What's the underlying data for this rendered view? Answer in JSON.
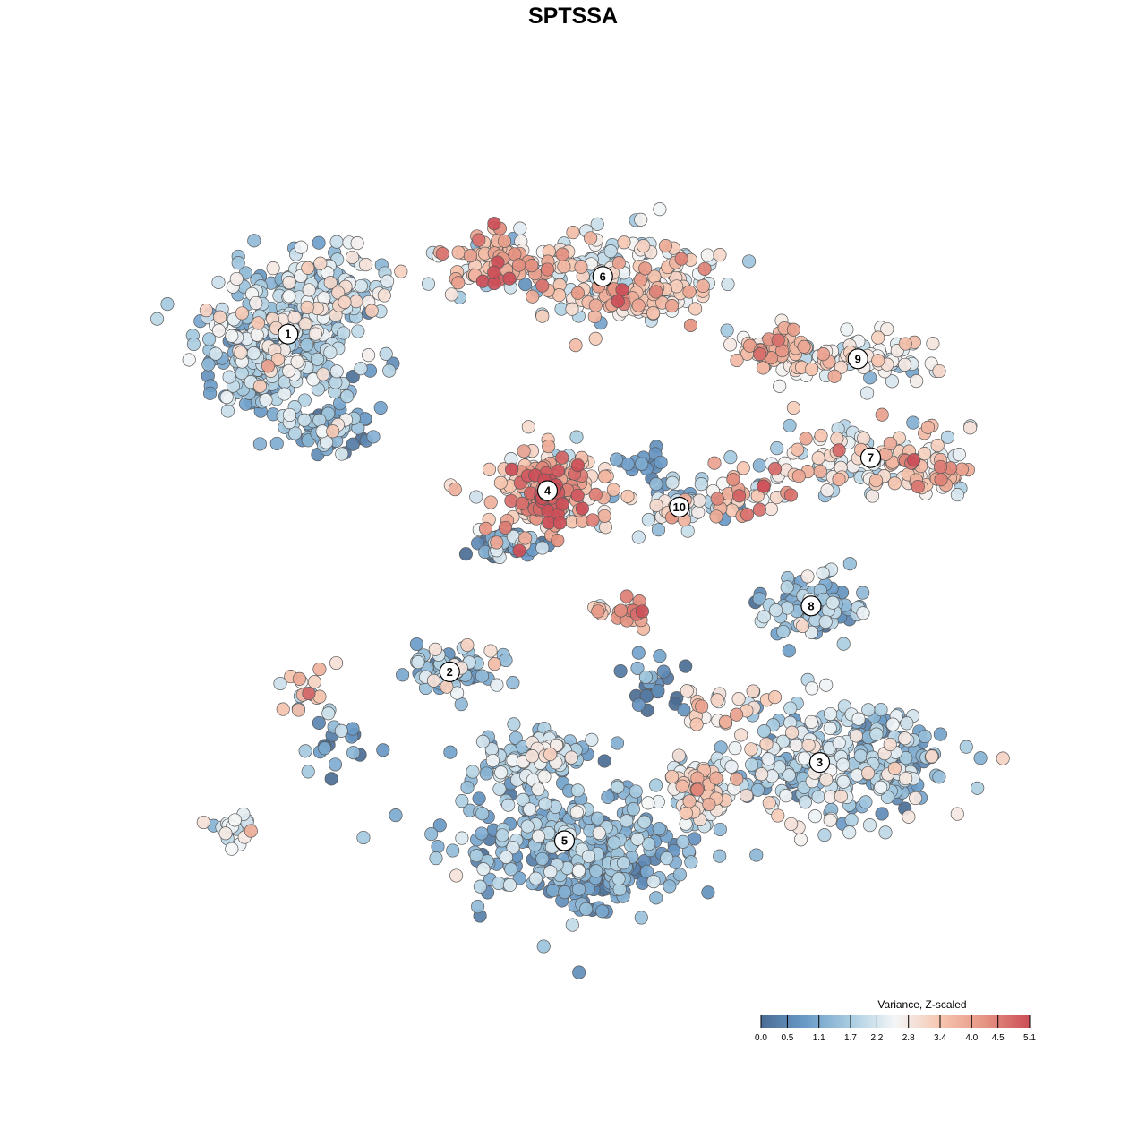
{
  "title": "SPTSSA",
  "colors": {
    "scale": [
      "#4a6c94",
      "#6a9bc8",
      "#a9cde1",
      "#f4f6f7",
      "#f6c6b0",
      "#e59482",
      "#cc4e58"
    ],
    "point_stroke": "#5a5a5a"
  },
  "chart_data": {
    "type": "scatter",
    "title": "SPTSSA",
    "xlabel": "",
    "ylabel": "",
    "grid": false,
    "legend_position": "bottom-right",
    "color_variable": "Variance, Z-scaled",
    "color_range": [
      0.0,
      5.1
    ],
    "legend": {
      "title": "Variance, Z-scaled",
      "ticks": [
        "0.0",
        "0.5",
        "1.1",
        "1.7",
        "2.2",
        "2.8",
        "3.4",
        "4.0",
        "4.5",
        "5.1"
      ]
    },
    "clusters": [
      {
        "label": "1",
        "x": -0.67,
        "y": 0.58,
        "rx": 0.16,
        "ry": 0.16,
        "mean": 1.8,
        "spread": 0.7,
        "n": 520,
        "blobs": [
          [
            -0.75,
            0.52,
            0.1,
            0.14,
            1.3
          ],
          [
            -0.55,
            0.7,
            0.12,
            0.08,
            2.0
          ],
          [
            -0.58,
            0.35,
            0.09,
            0.05,
            0.9
          ]
        ]
      },
      {
        "label": "2",
        "x": -0.29,
        "y": -0.24,
        "rx": 0.11,
        "ry": 0.05,
        "mean": 1.3,
        "spread": 0.9,
        "n": 120,
        "blobs": [
          [
            -0.55,
            -0.41,
            0.09,
            0.07,
            0.4
          ],
          [
            -0.62,
            -0.27,
            0.08,
            0.05,
            2.8
          ],
          [
            -0.8,
            -0.62,
            0.06,
            0.04,
            2.2
          ]
        ]
      },
      {
        "label": "3",
        "x": 0.58,
        "y": -0.46,
        "rx": 0.25,
        "ry": 0.14,
        "mean": 1.8,
        "spread": 0.7,
        "n": 430,
        "blobs": [
          [
            0.74,
            -0.46,
            0.11,
            0.11,
            1.1
          ],
          [
            0.3,
            -0.52,
            0.07,
            0.07,
            2.6
          ]
        ]
      },
      {
        "label": "4",
        "x": -0.06,
        "y": 0.2,
        "rx": 0.15,
        "ry": 0.11,
        "mean": 3.5,
        "spread": 0.8,
        "n": 260,
        "blobs": [
          [
            -0.06,
            0.19,
            0.07,
            0.06,
            4.4
          ],
          [
            -0.14,
            0.07,
            0.08,
            0.03,
            0.6
          ]
        ]
      },
      {
        "label": "5",
        "x": -0.02,
        "y": -0.65,
        "rx": 0.26,
        "ry": 0.15,
        "mean": 1.2,
        "spread": 0.6,
        "n": 460,
        "blobs": [
          [
            0.05,
            -0.72,
            0.18,
            0.08,
            1.0
          ],
          [
            -0.1,
            -0.45,
            0.12,
            0.06,
            1.8
          ]
        ]
      },
      {
        "label": "6",
        "x": 0.07,
        "y": 0.72,
        "rx": 0.25,
        "ry": 0.11,
        "mean": 2.6,
        "spread": 0.8,
        "n": 330,
        "blobs": [
          [
            -0.17,
            0.75,
            0.1,
            0.07,
            3.7
          ],
          [
            0.16,
            0.68,
            0.11,
            0.05,
            3.2
          ]
        ]
      },
      {
        "label": "7",
        "x": 0.7,
        "y": 0.28,
        "rx": 0.26,
        "ry": 0.08,
        "mean": 2.7,
        "spread": 0.7,
        "n": 220,
        "blobs": [
          [
            0.84,
            0.25,
            0.09,
            0.04,
            3.4
          ],
          [
            0.27,
            0.17,
            0.1,
            0.06,
            1.2
          ],
          [
            0.4,
            0.19,
            0.08,
            0.06,
            3.8
          ]
        ]
      },
      {
        "label": "8",
        "x": 0.56,
        "y": -0.08,
        "rx": 0.11,
        "ry": 0.07,
        "mean": 1.4,
        "spread": 0.6,
        "n": 150,
        "blobs": [
          [
            0.12,
            -0.1,
            0.06,
            0.04,
            4.0
          ],
          [
            0.35,
            -0.33,
            0.12,
            0.06,
            3.0
          ],
          [
            0.18,
            -0.28,
            0.07,
            0.05,
            0.6
          ]
        ]
      },
      {
        "label": "9",
        "x": 0.67,
        "y": 0.52,
        "rx": 0.18,
        "ry": 0.06,
        "mean": 2.6,
        "spread": 0.6,
        "n": 150,
        "blobs": [
          [
            0.48,
            0.54,
            0.07,
            0.04,
            3.5
          ]
        ]
      },
      {
        "label": "10",
        "x": 0.25,
        "y": 0.16,
        "rx": 0.05,
        "ry": 0.04,
        "mean": 2.5,
        "spread": 0.5,
        "n": 40,
        "blobs": [
          [
            0.16,
            0.26,
            0.08,
            0.03,
            0.6
          ]
        ]
      }
    ]
  }
}
